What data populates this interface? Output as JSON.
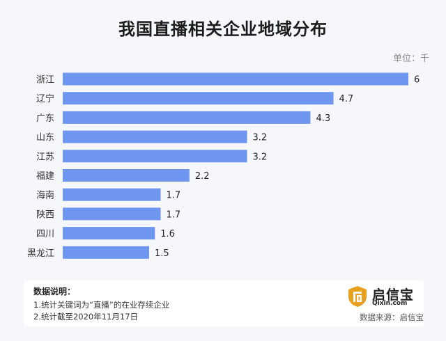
{
  "title": "我国直播相关企业地域分布",
  "unit_label": "单位：千",
  "chart_data": {
    "type": "bar",
    "orientation": "horizontal",
    "categories": [
      "浙江",
      "辽宁",
      "广东",
      "山东",
      "江苏",
      "福建",
      "海南",
      "陕西",
      "四川",
      "黑龙江"
    ],
    "values": [
      6,
      4.7,
      4.3,
      3.2,
      3.2,
      2.2,
      1.7,
      1.7,
      1.6,
      1.5
    ],
    "value_labels": [
      "6",
      "4.7",
      "4.3",
      "3.2",
      "3.2",
      "2.2",
      "1.7",
      "1.7",
      "1.6",
      "1.5"
    ],
    "xlim": [
      0,
      6
    ],
    "grid": false,
    "bar_color": "#6f96ee"
  },
  "notes": {
    "title": "数据说明：",
    "lines": [
      "1.统计关键词为“直播”的在业存续企业",
      "2.统计截至2020年11月17日"
    ]
  },
  "brand": {
    "name": "启信宝",
    "domain": "Qixin.com",
    "icon": "qixin-logo-icon",
    "icon_color": "#e8a11e"
  },
  "source": "数据来源：启信宝"
}
